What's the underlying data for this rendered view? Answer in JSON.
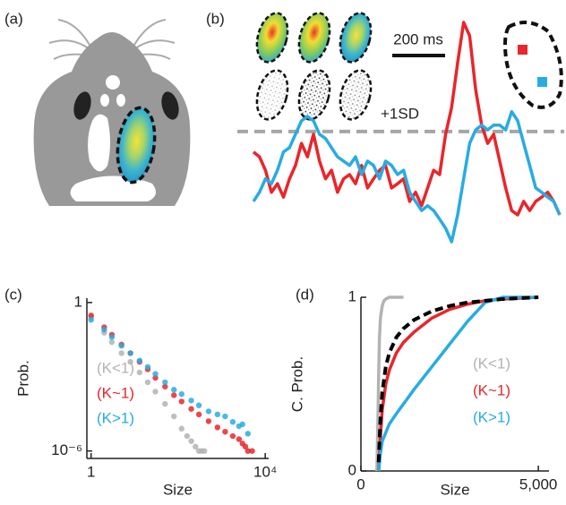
{
  "panel_labels": [
    "(a)",
    "(b)",
    "(c)",
    "(d)"
  ],
  "chart_data": [
    {
      "type": "trace",
      "series": [
        {
          "color": "#e8262b",
          "values": [
            0.62,
            0.53,
            0.28,
            -0.13,
            0.03,
            -0.22,
            0.12,
            0.37,
            0.78,
            0.53,
            0.95,
            0.45,
            0.12,
            0.28,
            -0.13,
            0.12,
            0.2,
            0.03,
            0.37,
            -0.05,
            0.12,
            0.28,
            0.37,
            -0.05,
            0.03,
            0.12,
            -0.3,
            -0.13,
            -0.38,
            -0.05,
            0.28,
            0.2,
            0.95,
            1.45,
            2.28,
            3.03,
            2.78,
            1.78,
            1.12,
            0.78,
            0.95,
            0.45,
            -0.05,
            -0.47,
            -0.55,
            -0.3,
            -0.47,
            -0.3,
            -0.22,
            -0.13,
            -0.3,
            -0.55
          ]
        },
        {
          "color": "#29abe2",
          "values": [
            -0.3,
            -0.13,
            0.12,
            0.03,
            0.28,
            0.62,
            0.7,
            0.95,
            1.2,
            1.28,
            1.2,
            0.95,
            0.87,
            0.7,
            0.53,
            0.45,
            0.37,
            0.53,
            0.2,
            0.45,
            0.37,
            0.12,
            0.45,
            0.37,
            0.2,
            0.28,
            -0.13,
            -0.3,
            -0.47,
            -0.38,
            -0.47,
            -0.63,
            -0.8,
            -1.05,
            -0.55,
            0.12,
            0.78,
            1.03,
            1.12,
            1.03,
            1.12,
            1.12,
            1.03,
            1.37,
            1.2,
            0.78,
            0.37,
            -0.05,
            -0.13,
            -0.22,
            -0.3,
            -0.55
          ]
        }
      ],
      "threshold": {
        "value": 1,
        "label": "+1SD"
      },
      "scale_bar": "200 ms"
    },
    {
      "type": "scatter",
      "log_x": true,
      "log_y": true,
      "xlabel": "Size",
      "ylabel": "Prob.",
      "xlim": [
        0.8,
        12000
      ],
      "ylim": [
        5e-07,
        1.5
      ],
      "xticks": [
        1,
        {
          "value": 10000,
          "label": "10⁴"
        }
      ],
      "yticks": [
        {
          "value": 1e-06,
          "label": "10⁻⁶"
        },
        1
      ],
      "series": [
        {
          "name": "(K<1)",
          "color": "#b3b3b3",
          "x": [
            1,
            2,
            3,
            5,
            8,
            13,
            20,
            30,
            50,
            80,
            120,
            160,
            200,
            250,
            300,
            350,
            400
          ],
          "values": [
            0.25,
            0.06,
            0.025,
            0.009,
            0.004,
            0.0015,
            0.0006,
            0.00025,
            8e-05,
            2.5e-05,
            8e-06,
            4e-06,
            2.5e-06,
            1.5e-06,
            1e-06,
            1e-06,
            1e-06
          ]
        },
        {
          "name": "(K~1)",
          "color": "#e8262b",
          "x": [
            1,
            2,
            3,
            5,
            8,
            13,
            20,
            30,
            50,
            80,
            120,
            200,
            300,
            500,
            800,
            1200,
            1800,
            2500,
            3000,
            3500,
            4000,
            5000
          ],
          "values": [
            0.3,
            0.1,
            0.05,
            0.02,
            0.009,
            0.004,
            0.002,
            0.0009,
            0.0004,
            0.00018,
            0.0001,
            5e-05,
            3e-05,
            1.6e-05,
            9e-06,
            6e-06,
            4e-06,
            3e-06,
            2e-06,
            1.5e-06,
            1e-06,
            1e-06
          ]
        },
        {
          "name": "(K>1)",
          "color": "#29abe2",
          "x": [
            1,
            2,
            3,
            5,
            8,
            13,
            20,
            30,
            50,
            80,
            120,
            200,
            300,
            500,
            800,
            1200,
            1800,
            2500,
            3000,
            4000
          ],
          "values": [
            0.2,
            0.08,
            0.04,
            0.018,
            0.009,
            0.0045,
            0.0025,
            0.0013,
            0.0006,
            0.0003,
            0.0002,
            0.00011,
            7e-05,
            4e-05,
            3e-05,
            2.5e-05,
            1.5e-05,
            1e-05,
            1.2e-05,
            5e-06
          ]
        }
      ]
    },
    {
      "type": "line",
      "xlabel": "Size",
      "ylabel": "C. Prob.",
      "xlim": [
        0,
        5300
      ],
      "ylim": [
        0,
        1
      ],
      "xticks": [
        0,
        {
          "value": 5000,
          "label": "5,000"
        }
      ],
      "yticks": [
        0,
        1
      ],
      "series": [
        {
          "name": "(K<1)",
          "color": "#b3b3b3",
          "x": [
            450,
            480,
            500,
            520,
            550,
            600,
            650,
            700,
            800,
            1000,
            1200
          ],
          "values": [
            0,
            0.3,
            0.55,
            0.75,
            0.88,
            0.95,
            0.98,
            0.99,
            1,
            1,
            1
          ]
        },
        {
          "name": "(K~1)",
          "color": "#e8262b",
          "x": [
            500,
            550,
            600,
            700,
            800,
            1000,
            1200,
            1500,
            2000,
            2500,
            3000,
            3500,
            4000,
            5000
          ],
          "values": [
            0,
            0.2,
            0.35,
            0.5,
            0.58,
            0.68,
            0.74,
            0.8,
            0.88,
            0.93,
            0.96,
            0.98,
            0.99,
            1
          ]
        },
        {
          "name": "(K>1)",
          "color": "#29abe2",
          "x": [
            500,
            550,
            600,
            800,
            1000,
            1500,
            2000,
            2500,
            3000,
            3500,
            4000,
            5000
          ],
          "values": [
            0,
            0.1,
            0.17,
            0.27,
            0.33,
            0.47,
            0.6,
            0.73,
            0.86,
            0.97,
            1,
            1
          ]
        },
        {
          "color": "#000000",
          "dashed": true,
          "x": [
            500,
            550,
            600,
            700,
            800,
            1000,
            1200,
            1500,
            2000,
            2500,
            3000,
            3500,
            4000,
            5000
          ],
          "values": [
            0.05,
            0.3,
            0.45,
            0.6,
            0.68,
            0.77,
            0.82,
            0.87,
            0.92,
            0.95,
            0.97,
            0.98,
            0.99,
            1
          ]
        }
      ]
    }
  ]
}
